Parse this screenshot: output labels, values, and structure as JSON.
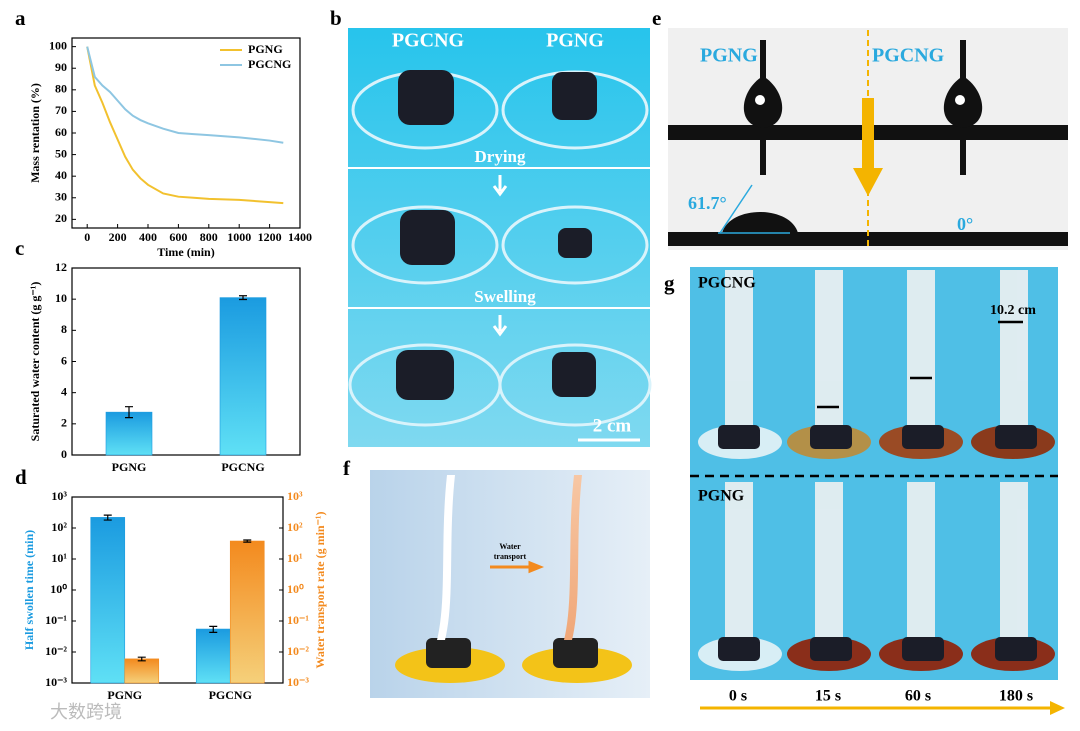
{
  "chart_data": [
    {
      "label": "a",
      "type": "line",
      "xlabel": "Time (min)",
      "ylabel": "Mass rentation (%)",
      "x": [
        0,
        50,
        100,
        150,
        200,
        250,
        300,
        350,
        400,
        500,
        600,
        700,
        800,
        1000,
        1200,
        1290
      ],
      "series": [
        {
          "name": "PGNG",
          "color": "#f2c12e",
          "values": [
            100,
            82,
            74,
            65,
            57,
            49,
            43,
            39,
            36,
            32,
            30.5,
            30,
            29.5,
            29,
            28,
            27.5
          ]
        },
        {
          "name": "PGCNG",
          "color": "#8ec6e2",
          "values": [
            100,
            86,
            82,
            79,
            75,
            71,
            68,
            66,
            64.5,
            62,
            60,
            59.5,
            59,
            58,
            56.5,
            55.5
          ]
        }
      ],
      "xlim": [
        -100,
        1400
      ],
      "xticks": [
        0,
        200,
        400,
        600,
        800,
        1000,
        1200,
        1400
      ],
      "ylim": [
        16,
        104
      ],
      "yticks": [
        20,
        30,
        40,
        50,
        60,
        70,
        80,
        90,
        100
      ],
      "legend": "upper right"
    },
    {
      "label": "c",
      "type": "bar",
      "ylabel": "Saturated water content (g g⁻¹)",
      "categories": [
        "PGNG",
        "PGCNG"
      ],
      "values": [
        2.75,
        10.1
      ],
      "errors": [
        0.35,
        0.12
      ],
      "color": "#1b9be0",
      "ylim": [
        0,
        12
      ],
      "yticks": [
        0,
        2,
        4,
        6,
        8,
        10,
        12
      ]
    },
    {
      "label": "d",
      "type": "bar",
      "categories": [
        "PGNG",
        "PGCNG"
      ],
      "ylog": true,
      "series": [
        {
          "name": "Half swollen time (min)",
          "color": "#1b9be0",
          "values": [
            220,
            0.055
          ],
          "errors": [
            40,
            0.012
          ]
        },
        {
          "name": "Water transport rate (g min⁻¹)",
          "color": "#f38a1e",
          "axis": "y2",
          "values": [
            0.006,
            38
          ],
          "errors": [
            0.0008,
            3
          ]
        }
      ],
      "ylim": [
        0.001,
        1000
      ],
      "yticks": [
        {
          "value": 0.001,
          "label": "10⁻³"
        },
        {
          "value": 0.01,
          "label": "10⁻²"
        },
        {
          "value": 0.1,
          "label": "10⁻¹"
        },
        {
          "value": 1,
          "label": "10⁰"
        },
        {
          "value": 10,
          "label": "10¹"
        },
        {
          "value": 100,
          "label": "10²"
        },
        {
          "value": 1000,
          "label": "10³"
        }
      ],
      "y2lim": [
        0.001,
        1000
      ],
      "y2ticks": [
        {
          "value": 0.001,
          "label": "10⁻³"
        },
        {
          "value": 0.01,
          "label": "10⁻²"
        },
        {
          "value": 0.1,
          "label": "10⁻¹"
        },
        {
          "value": 1,
          "label": "10⁰"
        },
        {
          "value": 10,
          "label": "10¹"
        },
        {
          "value": 100,
          "label": "10²"
        },
        {
          "value": 1000,
          "label": "10³"
        }
      ]
    }
  ],
  "figure": {
    "b": {
      "label": "b",
      "left": "PGCNG",
      "right": "PGNG",
      "step1": "Drying",
      "step2": "Swelling",
      "scale": "2 cm"
    },
    "e": {
      "label": "e",
      "left": "PGNG",
      "right": "PGCNG",
      "angle_left": "61.7°",
      "angle_right": "0°"
    },
    "f": {
      "label": "f",
      "arrow_line1": "Water",
      "arrow_line2": "transport"
    },
    "g": {
      "label": "g",
      "top": "PGCNG",
      "height": "10.2 cm",
      "bottom": "PGNG",
      "times": [
        "0 s",
        "15 s",
        "60 s",
        "180 s"
      ]
    },
    "watermark": "大数跨境"
  }
}
